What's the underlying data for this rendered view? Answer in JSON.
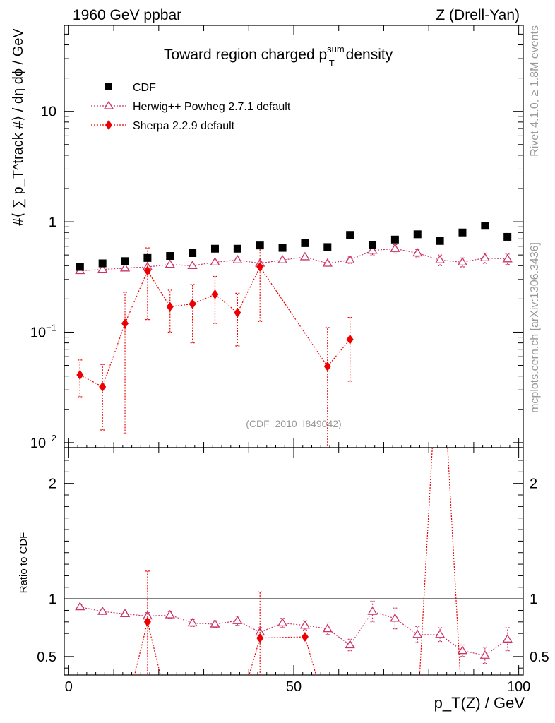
{
  "header": {
    "left": "1960 GeV ppbar",
    "right": "Z (Drell-Yan)"
  },
  "side_texts": {
    "rivet": "Rivet 4.1.0, ≥ 1.8M events",
    "mcplots": "mcplots.cern.ch [arXiv:1306.3436]"
  },
  "colors": {
    "cdf": "#000000",
    "herwig": "#cc3366",
    "sherpa": "#ee0000",
    "grey": "#999999"
  },
  "chart_data": [
    {
      "type": "scatter",
      "panel": "main",
      "title_main": "Toward region charged p",
      "title_sub": "T",
      "title_sup": "sum",
      "title_tail": "density",
      "ylabel": "#⟨ ∑ p_T^track #⟩ / dη dϕ / GeV",
      "yscale": "log",
      "ylim": [
        0.009,
        60
      ],
      "xlim": [
        -1,
        101
      ],
      "ytick_labels": [
        {
          "value": 10,
          "label": "10"
        },
        {
          "value": 1,
          "label": "1"
        },
        {
          "value": 0.1,
          "label": "10",
          "exp": "−1"
        },
        {
          "value": 0.01,
          "label": "10",
          "exp": "−2"
        }
      ],
      "analysis_label": "(CDF_2010_I849042)",
      "series": [
        {
          "name": "CDF",
          "marker": "square",
          "x": [
            2.5,
            7.5,
            12.5,
            17.5,
            22.5,
            27.5,
            32.5,
            37.5,
            42.5,
            47.5,
            52.5,
            57.5,
            62.5,
            67.5,
            72.5,
            77.5,
            82.5,
            87.5,
            92.5,
            97.5
          ],
          "y": [
            0.39,
            0.42,
            0.44,
            0.47,
            0.49,
            0.52,
            0.57,
            0.57,
            0.61,
            0.58,
            0.64,
            0.59,
            0.76,
            0.62,
            0.69,
            0.77,
            0.67,
            0.8,
            0.92,
            0.73
          ]
        },
        {
          "name": "Herwig++ Powheg 2.7.1 default",
          "marker": "triangle",
          "x": [
            2.5,
            7.5,
            12.5,
            17.5,
            22.5,
            27.5,
            32.5,
            37.5,
            42.5,
            47.5,
            52.5,
            57.5,
            62.5,
            67.5,
            72.5,
            77.5,
            82.5,
            87.5,
            92.5,
            97.5
          ],
          "y": [
            0.36,
            0.37,
            0.38,
            0.39,
            0.41,
            0.4,
            0.43,
            0.45,
            0.42,
            0.45,
            0.48,
            0.42,
            0.45,
            0.55,
            0.57,
            0.52,
            0.45,
            0.43,
            0.47,
            0.46
          ],
          "err_lo": [
            0.01,
            0.01,
            0.01,
            0.01,
            0.01,
            0.01,
            0.02,
            0.02,
            0.02,
            0.02,
            0.02,
            0.02,
            0.03,
            0.05,
            0.05,
            0.04,
            0.05,
            0.04,
            0.05,
            0.05
          ],
          "err_hi": [
            0.01,
            0.01,
            0.01,
            0.01,
            0.01,
            0.01,
            0.02,
            0.02,
            0.02,
            0.02,
            0.02,
            0.02,
            0.03,
            0.05,
            0.05,
            0.04,
            0.05,
            0.04,
            0.05,
            0.05
          ]
        },
        {
          "name": "Sherpa 2.2.9 default",
          "marker": "diamond",
          "x": [
            2.5,
            7.5,
            12.5,
            17.5,
            22.5,
            27.5,
            32.5,
            37.5,
            42.5,
            57.5,
            62.5
          ],
          "y": [
            0.041,
            0.032,
            0.12,
            0.36,
            0.17,
            0.18,
            0.22,
            0.15,
            0.39,
            0.049,
            0.086
          ],
          "err_lo": [
            0.015,
            0.019,
            0.108,
            0.23,
            0.07,
            0.1,
            0.1,
            0.075,
            0.265,
            0.042,
            0.05
          ],
          "err_hi": [
            0.015,
            0.019,
            0.11,
            0.22,
            0.07,
            0.09,
            0.1,
            0.075,
            0.22,
            0.061,
            0.05
          ]
        }
      ]
    },
    {
      "type": "scatter",
      "panel": "ratio",
      "ylabel": "Ratio to CDF",
      "xlabel": "p_T(Z) / GeV",
      "xlim": [
        -1,
        101
      ],
      "ylim": [
        0.34,
        2.31
      ],
      "reference_line": 1,
      "xtick_labels": [
        {
          "value": 0,
          "label": "0"
        },
        {
          "value": 50,
          "label": "50"
        },
        {
          "value": 100,
          "label": "100"
        }
      ],
      "ytick_labels": [
        {
          "value": 0.5,
          "label": "0.5"
        },
        {
          "value": 1,
          "label": "1"
        },
        {
          "value": 2,
          "label": "2"
        }
      ],
      "series": [
        {
          "name": "Herwig++ Powheg 2.7.1 default",
          "marker": "triangle",
          "x": [
            2.5,
            7.5,
            12.5,
            17.5,
            22.5,
            27.5,
            32.5,
            37.5,
            42.5,
            47.5,
            52.5,
            57.5,
            62.5,
            67.5,
            72.5,
            77.5,
            82.5,
            87.5,
            92.5,
            97.5
          ],
          "y": [
            0.93,
            0.89,
            0.87,
            0.85,
            0.86,
            0.79,
            0.78,
            0.81,
            0.71,
            0.79,
            0.77,
            0.74,
            0.6,
            0.89,
            0.83,
            0.69,
            0.69,
            0.55,
            0.51,
            0.65
          ],
          "err_lo": [
            0.02,
            0.02,
            0.02,
            0.03,
            0.03,
            0.03,
            0.03,
            0.04,
            0.04,
            0.04,
            0.04,
            0.05,
            0.05,
            0.09,
            0.09,
            0.07,
            0.06,
            0.05,
            0.07,
            0.1
          ],
          "err_hi": [
            0.02,
            0.02,
            0.02,
            0.03,
            0.03,
            0.03,
            0.03,
            0.04,
            0.04,
            0.04,
            0.04,
            0.05,
            0.05,
            0.09,
            0.09,
            0.07,
            0.06,
            0.05,
            0.07,
            0.1
          ]
        },
        {
          "name": "Sherpa 2.2.9 default",
          "marker": "diamond",
          "x": [
            17.5,
            42.5,
            52.5
          ],
          "y": [
            0.8,
            0.66,
            0.67
          ],
          "err_lo": [
            0.5,
            0.35,
            0.0
          ],
          "err_hi": [
            0.44,
            0.4,
            0.0
          ]
        }
      ]
    }
  ]
}
